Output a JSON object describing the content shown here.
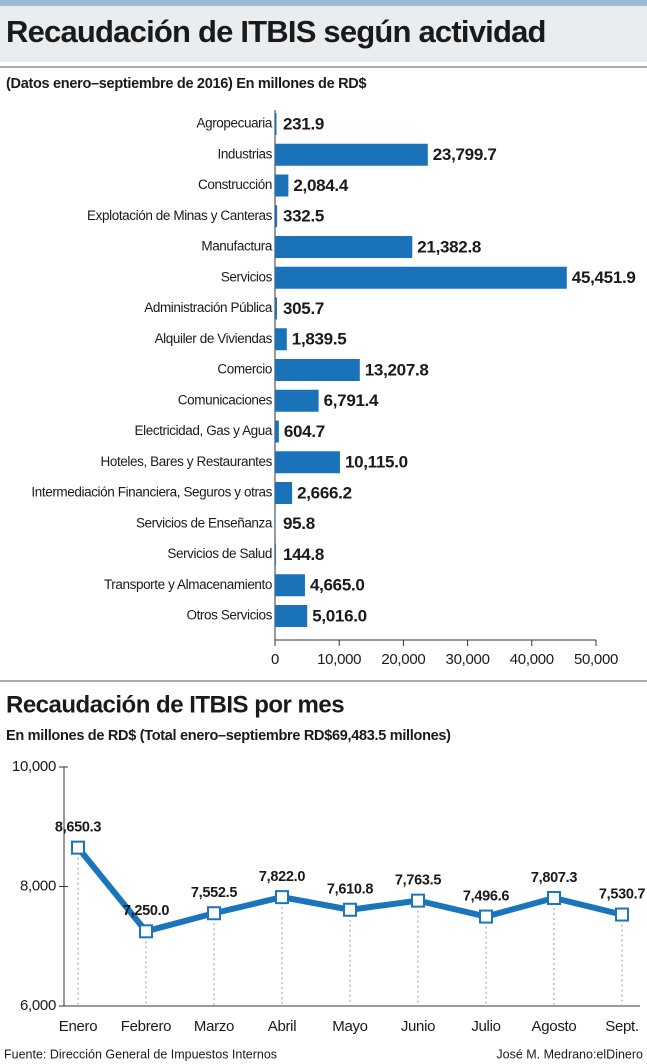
{
  "chart_data": [
    {
      "type": "bar",
      "orientation": "horizontal",
      "title": "Recaudación de ITBIS según actividad",
      "subtitle": "(Datos enero–septiembre de 2016) En millones de RD$",
      "categories": [
        "Agropecuaria",
        "Industrias",
        "Construcción",
        "Explotación de Minas y Canteras",
        "Manufactura",
        "Servicios",
        "Administración Pública",
        "Alquiler de Viviendas",
        "Comercio",
        "Comunicaciones",
        "Electricidad, Gas y Agua",
        "Hoteles, Bares y Restaurantes",
        "Intermediación Financiera, Seguros y otras",
        "Servicios de Enseñanza",
        "Servicios de Salud",
        "Transporte y Almacenamiento",
        "Otros Servicios"
      ],
      "values": [
        231.9,
        23799.7,
        2084.4,
        332.5,
        21382.8,
        45451.9,
        305.7,
        1839.5,
        13207.8,
        6791.4,
        604.7,
        10115.0,
        2666.2,
        95.8,
        144.8,
        4665.0,
        5016.0
      ],
      "value_labels": [
        "231.9",
        "23,799.7",
        "2,084.4",
        "332.5",
        "21,382.8",
        "45,451.9",
        "305.7",
        "1,839.5",
        "13,207.8",
        "6,791.4",
        "604.7",
        "10,115.0",
        "2,666.2",
        "95.8",
        "144.8",
        "4,665.0",
        "5,016.0"
      ],
      "color": "#1a72b8",
      "xlim": [
        0,
        50000
      ],
      "xticks": [
        0,
        {
          "value": 10000,
          "label": "10,000"
        },
        {
          "value": 20000,
          "label": "20,000"
        },
        {
          "value": 30000,
          "label": "30,000"
        },
        {
          "value": 40000,
          "label": "40,000"
        },
        {
          "value": 50000,
          "label": "50,000"
        }
      ]
    },
    {
      "type": "line",
      "title": "Recaudación de ITBIS por mes",
      "subtitle": "En millones de RD$ (Total enero–septiembre RD$69,483.5 millones)",
      "categories": [
        "Enero",
        "Febrero",
        "Marzo",
        "Abril",
        "Mayo",
        "Junio",
        "Julio",
        "Agosto",
        "Sept."
      ],
      "values": [
        8650.3,
        7250.0,
        7552.5,
        7822.0,
        7610.8,
        7763.5,
        7496.6,
        7807.3,
        7530.7
      ],
      "value_labels": [
        "8,650.3",
        "7,250.0",
        "7,552.5",
        "7,822.0",
        "7,610.8",
        "7,763.5",
        "7,496.6",
        "7,807.3",
        "7,530.7"
      ],
      "color": "#1a75bb",
      "ylim": [
        6000,
        10000
      ],
      "yticks": [
        {
          "value": 6000,
          "label": "6,000"
        },
        {
          "value": 8000,
          "label": "8,000"
        },
        {
          "value": 10000,
          "label": "10,000"
        }
      ]
    }
  ],
  "footer": {
    "source": "Fuente: Dirección General de Impuestos Internos",
    "credit": "José M. Medrano:elDinero"
  }
}
